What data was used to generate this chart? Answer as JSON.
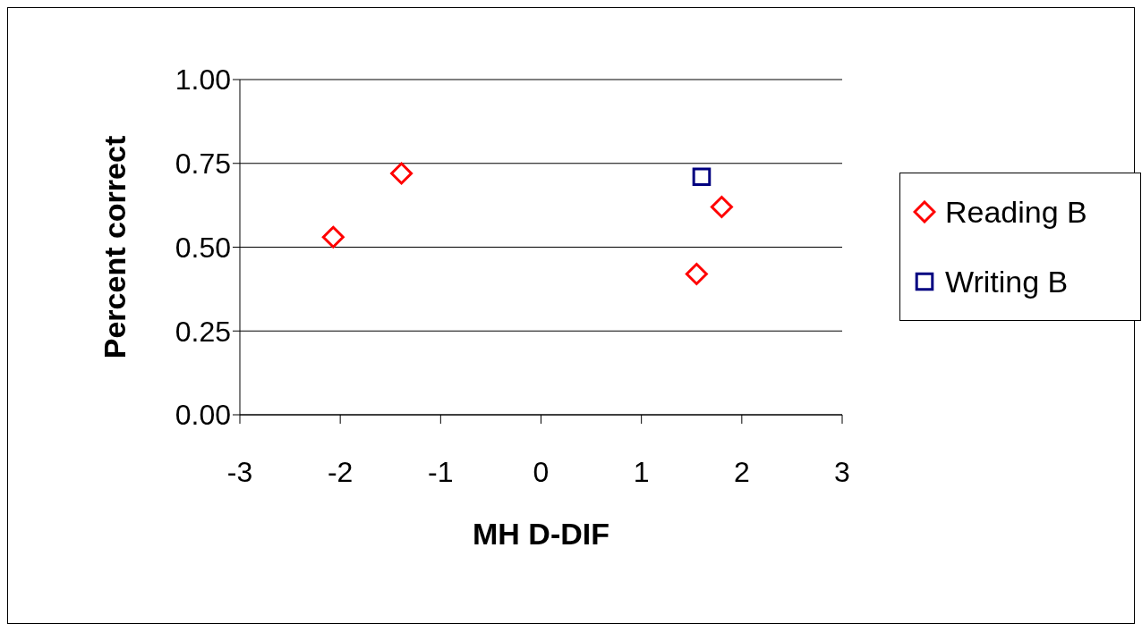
{
  "chart_data": {
    "type": "scatter",
    "xlabel": "MH D-DIF",
    "ylabel": "Percent correct",
    "series": [
      {
        "name": "Reading B",
        "color": "#ff0000",
        "marker": "diamond",
        "x": [
          -2.07,
          -1.39,
          1.55,
          1.8
        ],
        "values": [
          0.53,
          0.72,
          0.42,
          0.62
        ]
      },
      {
        "name": "Writing B",
        "color": "#000080",
        "marker": "square",
        "x": [
          1.6
        ],
        "values": [
          0.71
        ]
      }
    ],
    "xlim": [
      -3,
      3
    ],
    "xticks": [
      -3,
      -2,
      -1,
      0,
      1,
      2,
      3
    ],
    "ylim": [
      0,
      1
    ],
    "yticks": [
      {
        "value": 0,
        "label": "0.00"
      },
      {
        "value": 0.25,
        "label": "0.25"
      },
      {
        "value": 0.5,
        "label": "0.50"
      },
      {
        "value": 0.75,
        "label": "0.75"
      },
      {
        "value": 1,
        "label": "1.00"
      }
    ],
    "grid": "y",
    "legend": "right"
  }
}
